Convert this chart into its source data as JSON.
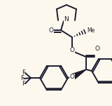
{
  "background_color": "#fdf8ee",
  "line_color": "#1c1c2e",
  "line_width": 1.4,
  "figsize": [
    1.6,
    1.51
  ],
  "dpi": 100,
  "xlim": [
    0,
    160
  ],
  "ylim": [
    0,
    151
  ]
}
